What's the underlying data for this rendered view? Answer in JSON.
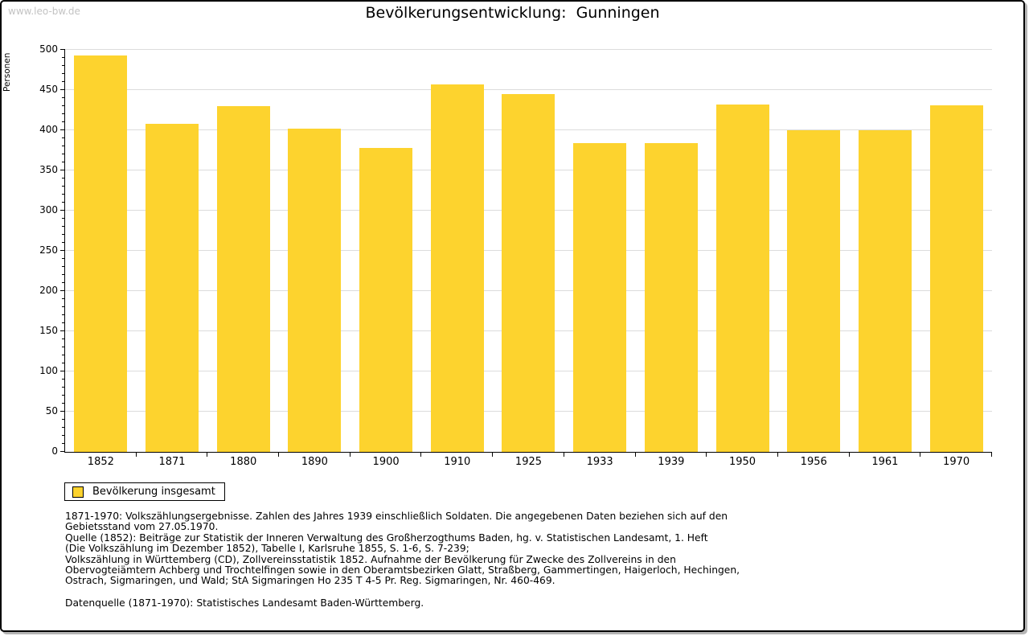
{
  "watermark": "www.leo-bw.de",
  "title": "Bevölkerungsentwicklung:  Gunningen",
  "legend": {
    "label": "Bevölkerung insgesamt"
  },
  "colors": {
    "bar": "#FDD32E",
    "grid": "#DCDCDC",
    "axis": "#000000",
    "watermark": "#C3C3C3"
  },
  "chart_data": {
    "type": "bar",
    "title": "Bevölkerungsentwicklung: Gunningen",
    "categories": [
      "1852",
      "1871",
      "1880",
      "1890",
      "1900",
      "1910",
      "1925",
      "1933",
      "1939",
      "1950",
      "1956",
      "1961",
      "1970"
    ],
    "values": [
      493,
      408,
      430,
      402,
      378,
      457,
      445,
      384,
      384,
      432,
      400,
      400,
      431
    ],
    "series_name": "Bevölkerung insgesamt",
    "xlabel": "",
    "ylabel": "Personen",
    "ylim": [
      0,
      500
    ],
    "yticks": [
      0,
      50,
      100,
      150,
      200,
      250,
      300,
      350,
      400,
      450,
      500
    ],
    "minor_tick_interval": 10,
    "grid": true,
    "legend_position": "bottom-left",
    "bar_color": "#FDD32E"
  },
  "footnotes": {
    "lines": [
      "1871-1970: Volkszählungsergebnisse. Zahlen des Jahres 1939 einschließlich Soldaten. Die angegebenen Daten beziehen sich auf den",
      "Gebietsstand vom 27.05.1970.",
      "Quelle (1852): Beiträge zur Statistik der Inneren Verwaltung des Großherzogthums Baden, hg. v. Statistischen Landesamt, 1. Heft",
      "(Die Volkszählung im Dezember 1852), Tabelle I, Karlsruhe 1855, S. 1-6, S. 7-239;",
      "Volkszählung in Württemberg (CD), Zollvereinsstatistik 1852. Aufnahme der Bevölkerung für Zwecke des Zollvereins in den",
      "Obervogteiämtern Achberg und Trochtelfingen sowie in den Oberamtsbezirken Glatt, Straßberg, Gammertingen, Haigerloch, Hechingen,",
      "Ostrach, Sigmaringen, und Wald; StA Sigmaringen Ho 235 T 4-5 Pr. Reg. Sigmaringen, Nr. 460-469."
    ],
    "datasource": "Datenquelle (1871-1970): Statistisches Landesamt Baden-Württemberg."
  }
}
